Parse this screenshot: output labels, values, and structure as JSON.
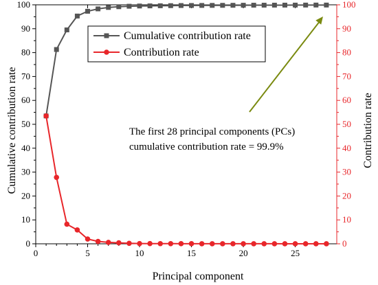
{
  "chart_data": {
    "type": "line",
    "x": [
      1,
      2,
      3,
      4,
      5,
      6,
      7,
      8,
      9,
      10,
      11,
      12,
      13,
      14,
      15,
      16,
      17,
      18,
      19,
      20,
      21,
      22,
      23,
      24,
      25,
      26,
      27,
      28
    ],
    "xlabel": "Principal component",
    "ylabel_left": "Cumulative contribution rate",
    "ylabel_right": "Contribution rate",
    "xlim": [
      0,
      29
    ],
    "ylim_left": [
      0,
      100
    ],
    "ylim_right": [
      0,
      100
    ],
    "xticks": [
      0,
      5,
      10,
      15,
      20,
      25
    ],
    "yticks": [
      0,
      10,
      20,
      30,
      40,
      50,
      60,
      70,
      80,
      90,
      100
    ],
    "grid": false,
    "legend_position": "top-center",
    "series": [
      {
        "name": "Cumulative contribution rate",
        "axis": "left",
        "marker": "square",
        "color": "#555555",
        "values": [
          53.5,
          81.3,
          89.5,
          95.3,
          97.3,
          98.3,
          98.9,
          99.2,
          99.4,
          99.5,
          99.55,
          99.6,
          99.65,
          99.7,
          99.72,
          99.74,
          99.76,
          99.78,
          99.8,
          99.82,
          99.84,
          99.85,
          99.86,
          99.87,
          99.88,
          99.89,
          99.9,
          99.9
        ]
      },
      {
        "name": "Contribution rate",
        "axis": "right",
        "marker": "circle",
        "color": "#e8262a",
        "values": [
          53.5,
          27.8,
          8.2,
          5.8,
          2.0,
          1.0,
          0.6,
          0.4,
          0.2,
          0.1,
          0.08,
          0.07,
          0.06,
          0.05,
          0.04,
          0.03,
          0.03,
          0.03,
          0.02,
          0.02,
          0.02,
          0.02,
          0.02,
          0.01,
          0.01,
          0.01,
          0.01,
          0.01
        ]
      }
    ],
    "annotation": {
      "line1": "The first 28 principal components (PCs)",
      "line2": "cumulative contribution rate = 99.9%",
      "arrow_color": "#7a8a10"
    },
    "axis_colors": {
      "left": "#000000",
      "right": "#e8262a"
    }
  }
}
